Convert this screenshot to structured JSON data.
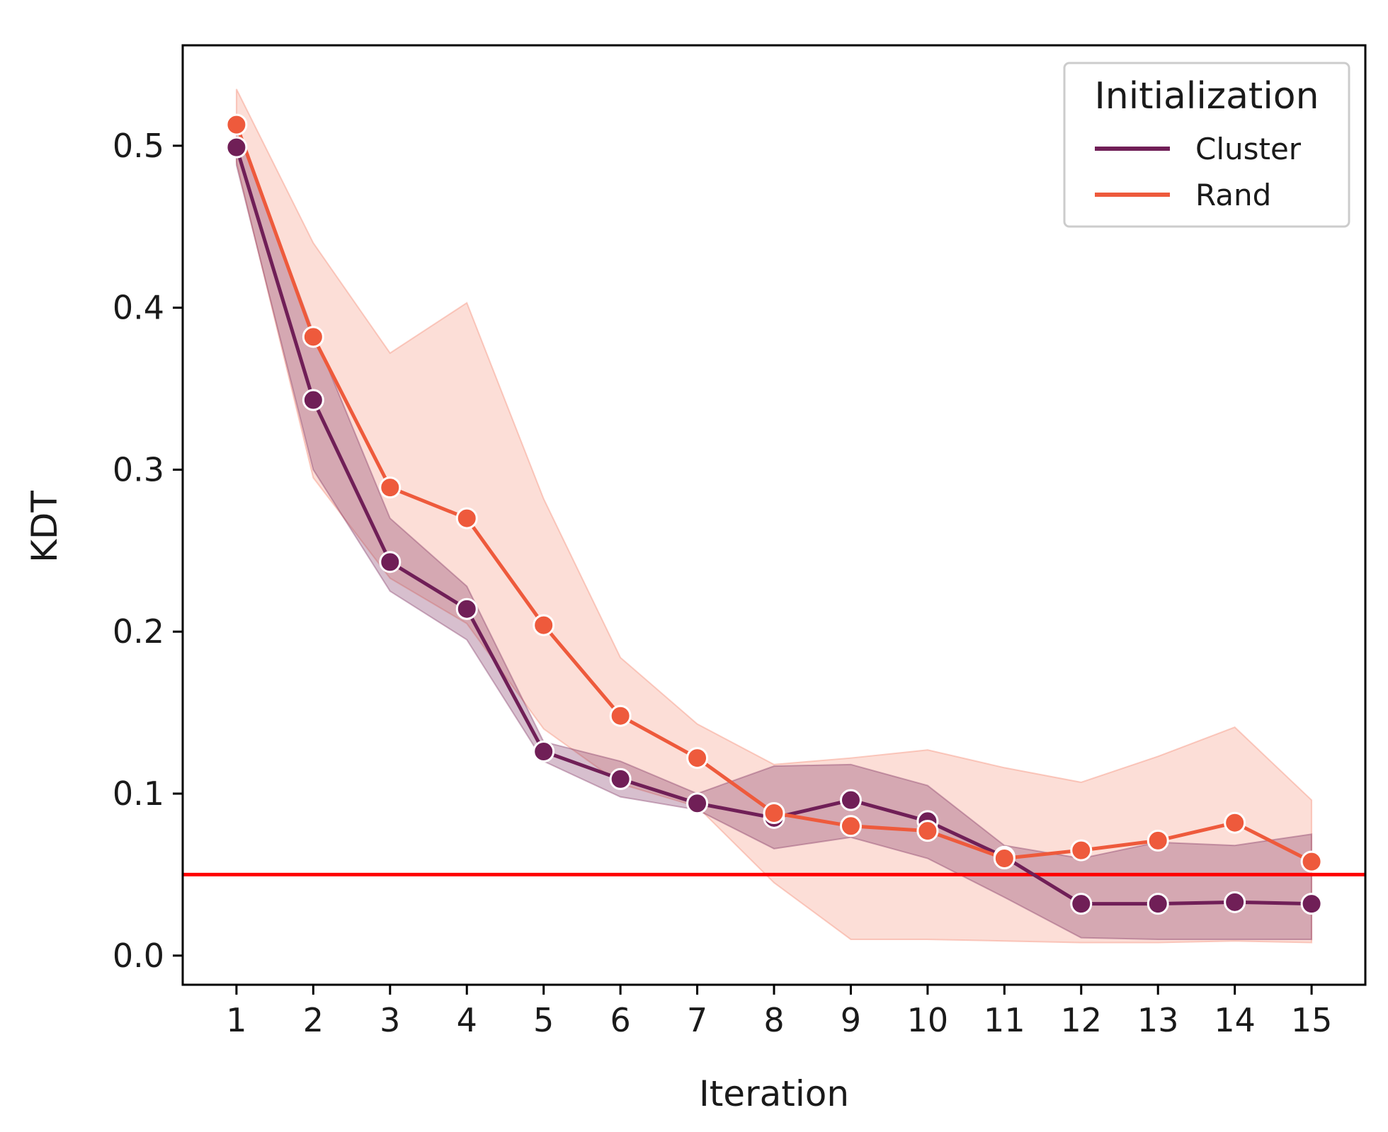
{
  "chart_data": {
    "type": "line",
    "title": "",
    "xlabel": "Iteration",
    "ylabel": "KDT",
    "x": [
      1,
      2,
      3,
      4,
      5,
      6,
      7,
      8,
      9,
      10,
      11,
      12,
      13,
      14,
      15
    ],
    "x_tick_labels": [
      "1",
      "2",
      "3",
      "4",
      "5",
      "6",
      "7",
      "8",
      "9",
      "10",
      "11",
      "12",
      "13",
      "14",
      "15"
    ],
    "y_ticks": [
      0.0,
      0.1,
      0.2,
      0.3,
      0.4,
      0.5
    ],
    "y_tick_labels": [
      "0.0",
      "0.1",
      "0.2",
      "0.3",
      "0.4",
      "0.5"
    ],
    "xlim": [
      0.3,
      15.7
    ],
    "ylim": [
      -0.018,
      0.562
    ],
    "grid": false,
    "legend": {
      "title": "Initialization",
      "placement": "top-right"
    },
    "series": [
      {
        "name": "Cluster",
        "color": "#701f57",
        "band_color": "#7a2a5c",
        "values": [
          0.499,
          0.343,
          0.243,
          0.214,
          0.126,
          0.109,
          0.094,
          0.085,
          0.096,
          0.083,
          0.061,
          0.032,
          0.032,
          0.033,
          0.032
        ],
        "ci_lower": [
          0.488,
          0.3,
          0.225,
          0.195,
          0.12,
          0.098,
          0.09,
          0.066,
          0.073,
          0.06,
          0.036,
          0.011,
          0.01,
          0.01,
          0.01
        ],
        "ci_upper": [
          0.512,
          0.385,
          0.27,
          0.228,
          0.132,
          0.12,
          0.1,
          0.117,
          0.118,
          0.105,
          0.068,
          0.06,
          0.07,
          0.068,
          0.075
        ]
      },
      {
        "name": "Rand",
        "color": "#ee5a3c",
        "band_color": "#f47a60",
        "values": [
          0.513,
          0.382,
          0.289,
          0.27,
          0.204,
          0.148,
          0.122,
          0.088,
          0.08,
          0.077,
          0.06,
          0.065,
          0.071,
          0.082,
          0.058
        ],
        "ci_lower": [
          0.49,
          0.295,
          0.233,
          0.205,
          0.14,
          0.106,
          0.092,
          0.045,
          0.01,
          0.01,
          0.009,
          0.008,
          0.008,
          0.009,
          0.008
        ],
        "ci_upper": [
          0.535,
          0.44,
          0.372,
          0.403,
          0.282,
          0.184,
          0.143,
          0.118,
          0.122,
          0.127,
          0.116,
          0.107,
          0.123,
          0.141,
          0.096
        ]
      }
    ],
    "reference_line": {
      "y": 0.05,
      "color": "#ff0000"
    }
  }
}
